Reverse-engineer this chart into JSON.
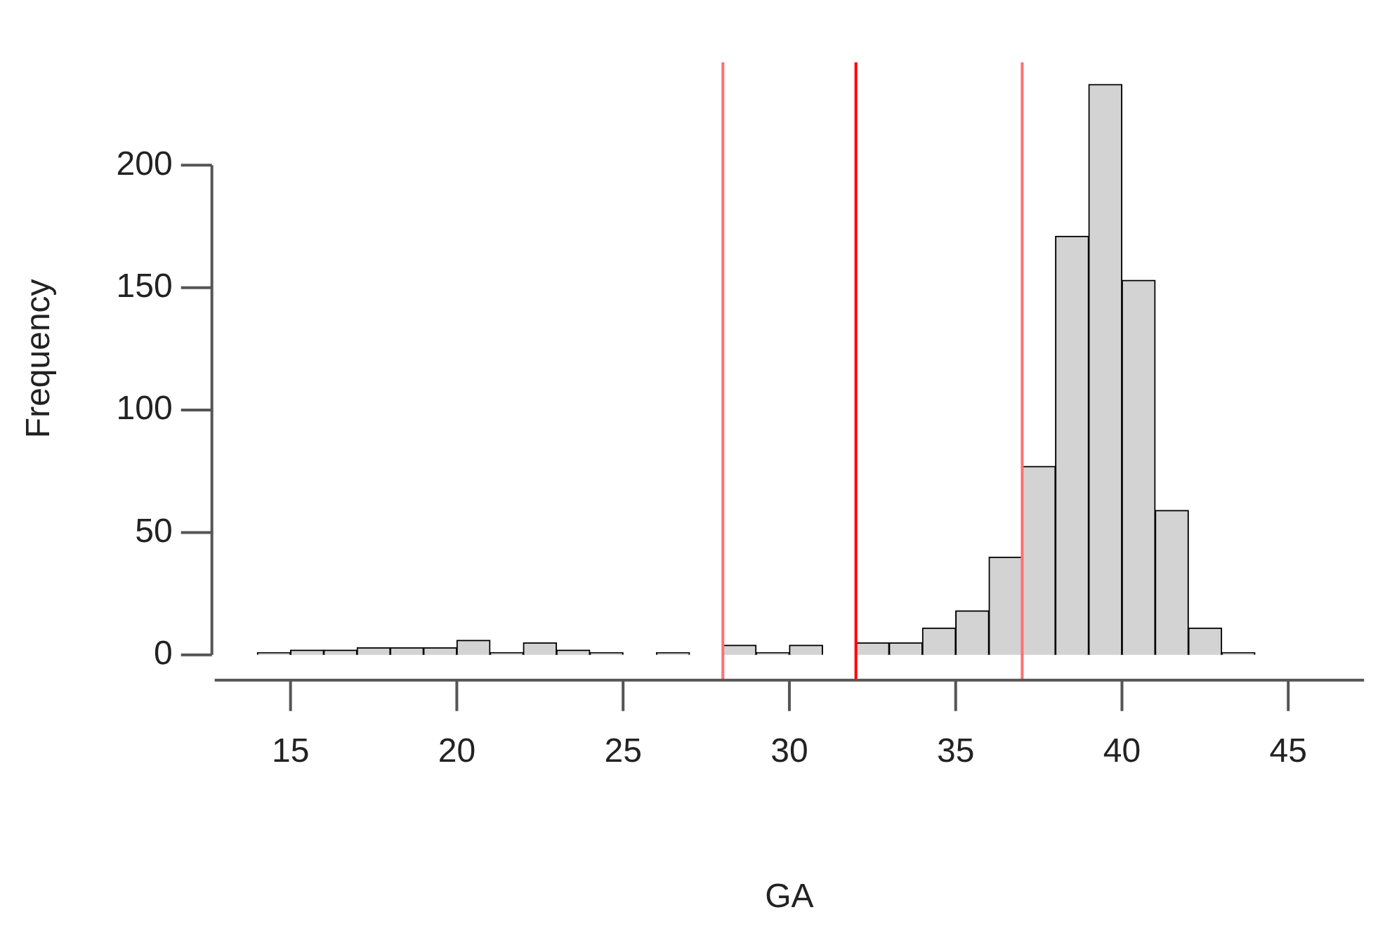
{
  "chart_data": {
    "type": "histogram",
    "xlabel": "GA",
    "ylabel": "Frequency",
    "bins": [
      14,
      15,
      16,
      17,
      18,
      19,
      20,
      21,
      22,
      23,
      24,
      25,
      26,
      27,
      28,
      29,
      30,
      31,
      32,
      33,
      34,
      35,
      36,
      37,
      38,
      39,
      40,
      41,
      42,
      43,
      44,
      45,
      46
    ],
    "values": [
      1,
      2,
      2,
      3,
      3,
      3,
      6,
      1,
      5,
      2,
      1,
      0,
      1,
      0,
      4,
      1,
      4,
      0,
      5,
      5,
      11,
      18,
      40,
      77,
      171,
      233,
      153,
      59,
      11,
      1,
      0,
      0
    ],
    "color": "#d3d3d3",
    "xlim": [
      12.72,
      47.28
    ],
    "xticks": [
      15,
      20,
      25,
      30,
      35,
      40,
      45
    ],
    "ylim": [
      0,
      242
    ],
    "yticks": [
      0,
      50,
      100,
      150,
      200
    ],
    "grid": false,
    "legend": false,
    "ref_lines": [
      {
        "axis": "x",
        "value": 28,
        "color": "#ff7070"
      },
      {
        "axis": "x",
        "value": 32,
        "color": "#ff0000"
      },
      {
        "axis": "x",
        "value": 37,
        "color": "#ff7070"
      }
    ]
  }
}
